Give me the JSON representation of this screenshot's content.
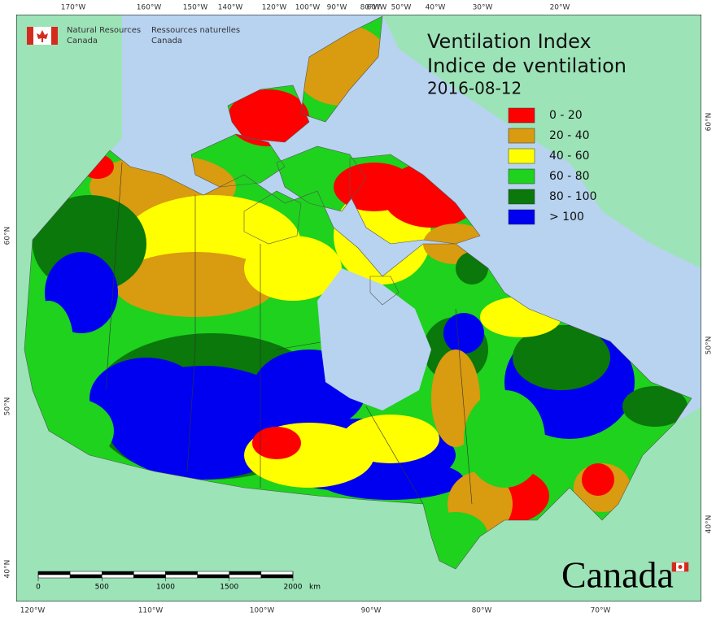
{
  "header": {
    "agency_en": "Natural Resources",
    "agency_en_2": "Canada",
    "agency_fr": "Ressources naturelles",
    "agency_fr_2": "Canada"
  },
  "title": {
    "line1": "Ventilation Index",
    "line2": "Indice de ventilation",
    "date": "2016-08-12"
  },
  "legend": [
    {
      "label": "0 - 20",
      "color": "#ff0000"
    },
    {
      "label": "20 - 40",
      "color": "#d99b0f"
    },
    {
      "label": "40 - 60",
      "color": "#ffff00"
    },
    {
      "label": "60 - 80",
      "color": "#1ed21e"
    },
    {
      "label": "80 - 100",
      "color": "#0a780a"
    },
    {
      "label": "> 100",
      "color": "#0000f0"
    }
  ],
  "graticule": {
    "top": [
      "170°W",
      "160°W",
      "150°W",
      "140°W",
      "120°W",
      "100°W",
      "90°W",
      "80°W",
      "60°W",
      "50°W",
      "40°W",
      "30°W",
      "20°W"
    ],
    "bottom": [
      "120°W",
      "110°W",
      "100°W",
      "90°W",
      "80°W",
      "70°W"
    ],
    "left": [
      "60°N",
      "50°N",
      "40°N"
    ],
    "right": [
      "60°N",
      "50°N",
      "40°N"
    ]
  },
  "scale_bar": {
    "ticks": [
      0,
      500,
      1000,
      1500,
      2000
    ],
    "unit": "km"
  },
  "wordmark": "Canada"
}
